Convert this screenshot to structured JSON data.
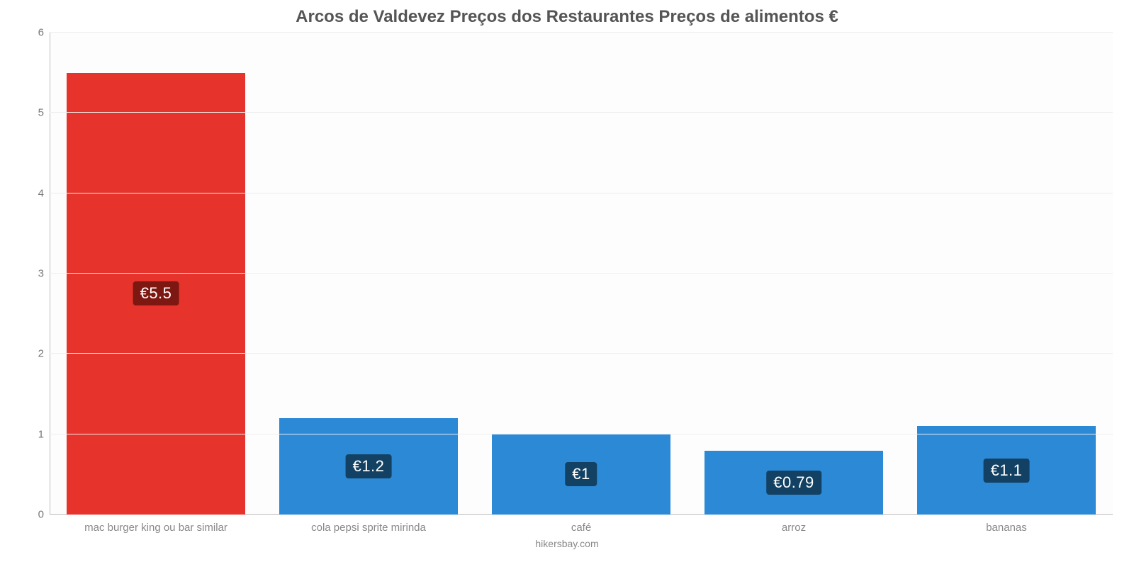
{
  "chart": {
    "type": "bar",
    "title": "Arcos de Valdevez Preços dos Restaurantes Preços de alimentos €",
    "title_fontsize": 24,
    "title_color": "#555555",
    "caption": "hikersbay.com",
    "caption_color": "#888888",
    "caption_fontsize": 14,
    "background_color": "#ffffff",
    "plot_background_color": "#fdfdfd",
    "axis_color": "#bbbbbb",
    "tick_label_color": "#777777",
    "tick_label_fontsize": 15,
    "x_label_color": "#888888",
    "x_label_fontsize": 15,
    "ylim": [
      0,
      6
    ],
    "yticks": [
      0,
      1,
      2,
      3,
      4,
      5,
      6
    ],
    "gridline_color": "#eeeeee",
    "bar_width_pct": 84,
    "value_label_fontsize": 22,
    "categories": [
      "mac burger king ou bar similar",
      "cola pepsi sprite mirinda",
      "café",
      "arroz",
      "bananas"
    ],
    "values": [
      5.5,
      1.2,
      1.0,
      0.79,
      1.1
    ],
    "value_labels": [
      "€5.5",
      "€1.2",
      "€1",
      "€0.79",
      "€1.1"
    ],
    "bar_colors": [
      "#e6342c",
      "#2b89d6",
      "#2b89d6",
      "#2b89d6",
      "#2b89d6"
    ],
    "badge_colors": [
      "#7d1712",
      "#134163",
      "#134163",
      "#134163",
      "#134163"
    ],
    "badge_text_color": "#ffffff"
  }
}
